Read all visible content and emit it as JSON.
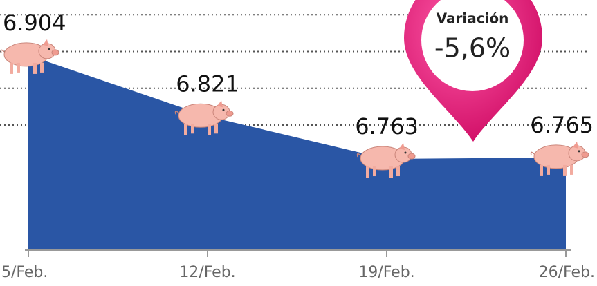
{
  "chart_data": {
    "type": "area",
    "categories": [
      "5/Feb.",
      "12/Feb.",
      "19/Feb.",
      "26/Feb."
    ],
    "values": [
      6.904,
      6.821,
      6.763,
      6.765
    ],
    "color": "#2a56a5",
    "ylim": [
      6.64,
      6.98
    ],
    "yticks": [
      6.81,
      6.86,
      6.91,
      6.96
    ],
    "grid": true,
    "annotation": {
      "title": "Variación",
      "text": "-5,6%",
      "color": "#e0106e"
    }
  }
}
